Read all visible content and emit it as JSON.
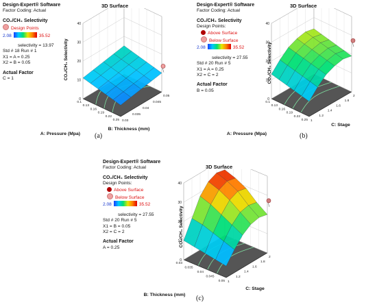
{
  "chart_data": [
    {
      "type": "surface",
      "title": "3D Surface",
      "software": "Design-Expert® Software",
      "factor_coding": "Factor Coding: Actual",
      "response": "CO₂/CH₄ Selectivity",
      "legend_point": "Design Points",
      "legend_below": "",
      "range_min": "2.08",
      "range_max": "35.52",
      "readout": [
        "selectivity = 13.97",
        "Std # 18 Run # 1",
        "X1 = A = 0.25",
        "X2 = B = 0.05"
      ],
      "actual_factor_label": "Actual Factor",
      "actual_factor_value": "C = 1",
      "zlabel": "CO₂/CH₄ Selectivity",
      "xlabel": "A: Pressure (Mpa)",
      "ylabel": "B: Thickness (mm)",
      "z_ticks": [
        "0",
        "10",
        "20",
        "30",
        "40"
      ],
      "x_ticks": [
        "0.25",
        "0.22",
        "0.19",
        "0.16",
        "0.13",
        "0.1"
      ],
      "y_ticks": [
        "0.03",
        "0.035",
        "0.04",
        "0.045",
        "0.05"
      ],
      "z_range": [
        0,
        40
      ],
      "surface_z": [
        [
          6,
          7,
          8,
          9,
          10
        ],
        [
          7,
          8,
          9,
          10,
          11
        ],
        [
          8,
          9,
          10,
          11,
          12
        ],
        [
          9,
          10,
          11,
          12,
          13
        ],
        [
          10,
          11,
          12,
          13,
          14
        ],
        [
          11,
          12,
          13,
          14,
          15
        ]
      ],
      "design_point": {
        "x": 0.25,
        "y": 0.05,
        "z": 13.97
      },
      "caption": "(a)"
    },
    {
      "type": "surface",
      "title": "3D Surface",
      "software": "Design-Expert® Software",
      "factor_coding": "Factor Coding: Actual",
      "response": "CO₂/CH₄ Selectivity",
      "legend_point": "Design Points:",
      "legend_above": "Above Surface",
      "legend_below": "Below Surface",
      "range_min": "2.08",
      "range_max": "35.52",
      "readout": [
        "selectivity = 27.55",
        "Std # 20 Run # 5",
        "X1 = A = 0.25",
        "X2 = C = 2"
      ],
      "actual_factor_label": "Actual Factor",
      "actual_factor_value": "B = 0.05",
      "zlabel": "CO₂/CH₄ Selectivity",
      "xlabel": "A: Pressure (Mpa)",
      "ylabel": "C: Stage",
      "z_ticks": [
        "0",
        "10",
        "20",
        "30",
        "40"
      ],
      "x_ticks": [
        "0.25",
        "0.22",
        "0.19",
        "0.16",
        "0.13",
        "0.1"
      ],
      "y_ticks": [
        "1",
        "1.2",
        "1.4",
        "1.6",
        "1.8",
        "2"
      ],
      "z_range": [
        0,
        40
      ],
      "surface_z": [
        [
          8,
          13,
          17,
          19,
          20,
          19
        ],
        [
          9,
          14,
          18,
          20,
          21,
          20
        ],
        [
          10,
          15,
          19,
          21,
          22,
          21
        ],
        [
          11,
          16,
          20,
          22,
          23,
          22
        ],
        [
          12,
          17,
          21,
          23,
          24,
          23
        ],
        [
          13,
          18,
          22,
          24,
          25,
          24
        ]
      ],
      "design_point": {
        "x": 0.25,
        "y": 2,
        "z": 27.55
      },
      "caption": "(b)"
    },
    {
      "type": "surface",
      "title": "3D Surface",
      "software": "Design-Expert® Software",
      "factor_coding": "Factor Coding: Actual",
      "response": "CO₂/CH₄ Selectivity",
      "legend_point": "Design Points:",
      "legend_above": "Above Surface",
      "legend_below": "Below Surface",
      "range_min": "2.08",
      "range_max": "35.52",
      "readout": [
        "selectivity = 27.55",
        "Std # 20 Run # 5",
        "X1 = B = 0.05",
        "X2 = C = 2"
      ],
      "actual_factor_label": "Actual Factor",
      "actual_factor_value": "A = 0.25",
      "zlabel": "CO₂/CH₄ Selectivity",
      "xlabel": "B: Thickness (mm)",
      "ylabel": "C: Stage",
      "z_ticks": [
        "0",
        "10",
        "20",
        "30",
        "40"
      ],
      "x_ticks": [
        "0.05",
        "0.045",
        "0.04",
        "0.035",
        "0.03"
      ],
      "y_ticks": [
        "1",
        "1.2",
        "1.4",
        "1.6",
        "1.8",
        "2"
      ],
      "z_range": [
        0,
        40
      ],
      "surface_z": [
        [
          6,
          12,
          17,
          20,
          21,
          20
        ],
        [
          7,
          14,
          20,
          24,
          25,
          24
        ],
        [
          8,
          16,
          23,
          28,
          30,
          29
        ],
        [
          9,
          18,
          26,
          31,
          33,
          32
        ],
        [
          10,
          19,
          28,
          33,
          35,
          34
        ]
      ],
      "design_point": {
        "x": 0.05,
        "y": 2,
        "z": 27.55
      },
      "caption": "(c)"
    }
  ],
  "colors": {
    "low": "#1a3cff",
    "mid": "#00e070",
    "high": "#e00000",
    "design_point": "#f0a0a0",
    "above_point": "#b00000",
    "floor": "#555555"
  }
}
